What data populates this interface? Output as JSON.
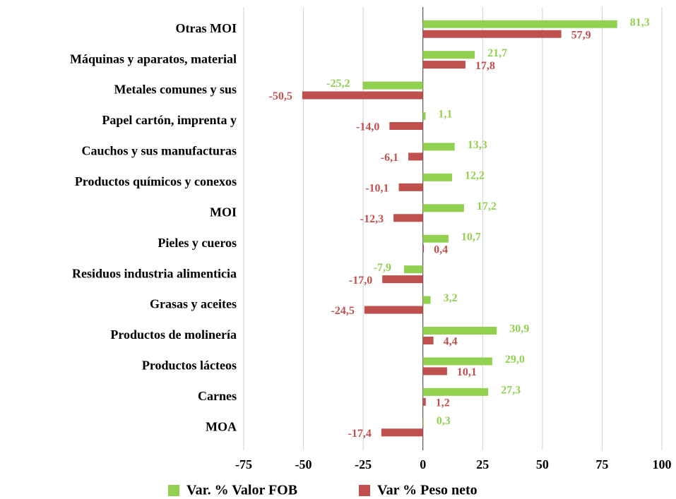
{
  "chart_data": {
    "type": "barh",
    "categories": [
      "Otras MOI",
      "Máquinas y aparatos, material",
      "Metales comunes y sus",
      "Papel cartón, imprenta y",
      "Cauchos y sus manufacturas",
      "Productos químicos y conexos",
      "MOI",
      "Pieles y cueros",
      "Residuos industria alimenticia",
      "Grasas y aceites",
      "Productos de molinería",
      "Productos lácteos",
      "Carnes",
      "MOA"
    ],
    "series": [
      {
        "name": "Var. % Valor FOB",
        "color": "#92d050",
        "values": [
          81.3,
          21.7,
          -25.2,
          1.1,
          13.3,
          12.2,
          17.2,
          10.7,
          -7.9,
          3.2,
          30.9,
          29.0,
          27.3,
          0.3
        ],
        "value_labels": [
          "81,3",
          "21,7",
          "-25,2",
          "1,1",
          "13,3",
          "12,2",
          "17,2",
          "10,7",
          "-7,9",
          "3,2",
          "30,9",
          "29,0",
          "27,3",
          "0,3"
        ]
      },
      {
        "name": "Var % Peso neto",
        "color": "#c0504d",
        "values": [
          57.9,
          17.8,
          -50.5,
          -14.0,
          -6.1,
          -10.1,
          -12.3,
          0.4,
          -17.0,
          -24.5,
          4.4,
          10.1,
          1.2,
          -17.4
        ],
        "value_labels": [
          "57,9",
          "17,8",
          "-50,5",
          "-14,0",
          "-6,1",
          "-10,1",
          "-12,3",
          "0,4",
          "-17,0",
          "-24,5",
          "4,4",
          "10,1",
          "1,2",
          "-17,4"
        ]
      }
    ],
    "xlim": [
      -75,
      100
    ],
    "xticks": [
      -75,
      -50,
      -25,
      0,
      25,
      50,
      75,
      100
    ],
    "grid": true,
    "legend": "bottom"
  }
}
